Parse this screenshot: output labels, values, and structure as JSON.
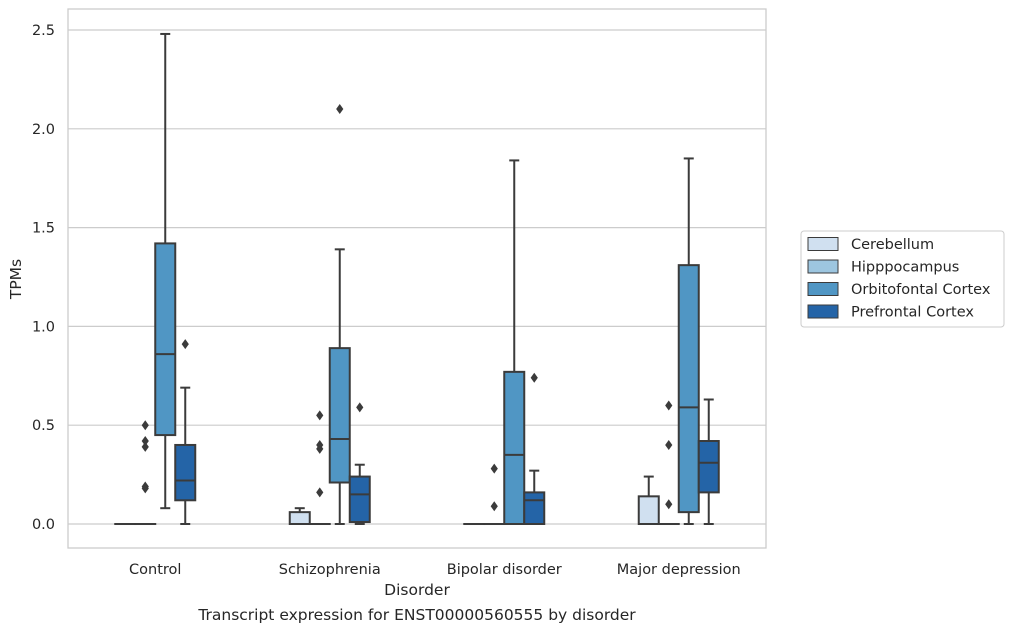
{
  "caption": "Transcript expression for ENST00000560555 by disorder",
  "chart_data": {
    "type": "box",
    "xlabel": "Disorder",
    "ylabel": "TPMs",
    "ylim": [
      -0.12,
      2.6
    ],
    "yticks": [
      "0.0",
      "0.5",
      "1.0",
      "1.5",
      "2.0",
      "2.5"
    ],
    "grid": "horizontal",
    "legend_position": "right",
    "categories": [
      "Control",
      "Schizophrenia",
      "Bipolar disorder",
      "Major depression"
    ],
    "series": [
      {
        "name": "Cerebellum",
        "color": "#d0e0f0",
        "boxes": [
          {
            "q1": 0,
            "median": 0,
            "q3": 0,
            "whisker_low": 0,
            "whisker_high": 0,
            "outliers": []
          },
          {
            "q1": 0,
            "median": 0,
            "q3": 0.06,
            "whisker_low": 0,
            "whisker_high": 0.08,
            "outliers": []
          },
          {
            "q1": 0,
            "median": 0,
            "q3": 0,
            "whisker_low": 0,
            "whisker_high": 0,
            "outliers": []
          },
          {
            "q1": 0,
            "median": 0,
            "q3": 0.14,
            "whisker_low": 0,
            "whisker_high": 0.24,
            "outliers": []
          }
        ]
      },
      {
        "name": "Hipppocampus",
        "color": "#9dc6e0",
        "boxes": [
          {
            "q1": 0,
            "median": 0,
            "q3": 0,
            "whisker_low": 0,
            "whisker_high": 0,
            "outliers": [
              0.18,
              0.19,
              0.39,
              0.42,
              0.5
            ]
          },
          {
            "q1": 0,
            "median": 0,
            "q3": 0,
            "whisker_low": 0,
            "whisker_high": 0,
            "outliers": [
              0.38,
              0.4,
              0.55,
              0.16
            ]
          },
          {
            "q1": 0,
            "median": 0,
            "q3": 0,
            "whisker_low": 0,
            "whisker_high": 0,
            "outliers": [
              0.09,
              0.28
            ]
          },
          {
            "q1": 0,
            "median": 0,
            "q3": 0,
            "whisker_low": 0,
            "whisker_high": 0,
            "outliers": [
              0.4,
              0.6,
              0.1
            ]
          }
        ]
      },
      {
        "name": "Orbitofontal Cortex",
        "color": "#5096c4",
        "boxes": [
          {
            "q1": 0.45,
            "median": 0.86,
            "q3": 1.42,
            "whisker_low": 0.08,
            "whisker_high": 2.48,
            "outliers": []
          },
          {
            "q1": 0.21,
            "median": 0.43,
            "q3": 0.89,
            "whisker_low": 0,
            "whisker_high": 1.39,
            "outliers": [
              2.1
            ]
          },
          {
            "q1": 0,
            "median": 0.35,
            "q3": 0.77,
            "whisker_low": 0,
            "whisker_high": 1.84,
            "outliers": []
          },
          {
            "q1": 0.06,
            "median": 0.59,
            "q3": 1.31,
            "whisker_low": 0,
            "whisker_high": 1.85,
            "outliers": []
          }
        ]
      },
      {
        "name": "Prefrontal Cortex",
        "color": "#2464a7",
        "boxes": [
          {
            "q1": 0.12,
            "median": 0.22,
            "q3": 0.4,
            "whisker_low": 0,
            "whisker_high": 0.69,
            "outliers": [
              0.91
            ]
          },
          {
            "q1": 0.01,
            "median": 0.15,
            "q3": 0.24,
            "whisker_low": 0,
            "whisker_high": 0.3,
            "outliers": [
              0.59
            ]
          },
          {
            "q1": 0,
            "median": 0.12,
            "q3": 0.16,
            "whisker_low": 0,
            "whisker_high": 0.27,
            "outliers": [
              0.74
            ]
          },
          {
            "q1": 0.16,
            "median": 0.31,
            "q3": 0.42,
            "whisker_low": 0,
            "whisker_high": 0.63,
            "outliers": []
          }
        ]
      }
    ]
  }
}
